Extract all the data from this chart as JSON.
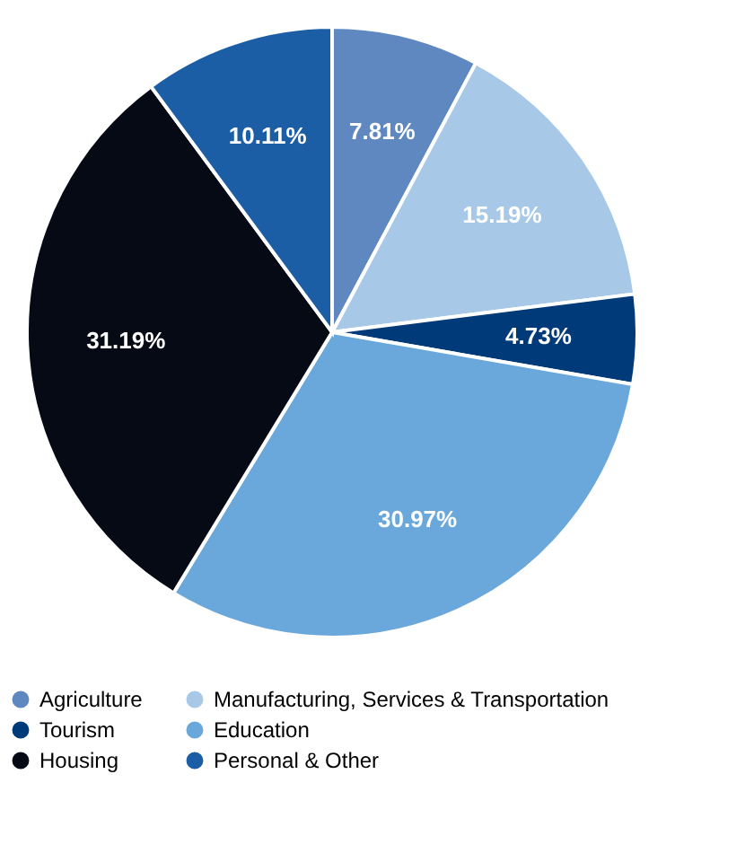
{
  "chart_data": {
    "type": "pie",
    "categories": [
      "Agriculture",
      "Manufacturing, Services & Transportation",
      "Tourism",
      "Education",
      "Housing",
      "Personal & Other"
    ],
    "values": [
      7.81,
      15.19,
      4.73,
      30.97,
      31.19,
      10.11
    ],
    "value_labels": [
      "7.81%",
      "15.19%",
      "4.73%",
      "30.97%",
      "31.19%",
      "10.11%"
    ],
    "colors": [
      "#5f88c1",
      "#a7c9e7",
      "#003a78",
      "#6aa8db",
      "#050a14",
      "#1c5ea6"
    ],
    "legend": "bottom"
  }
}
